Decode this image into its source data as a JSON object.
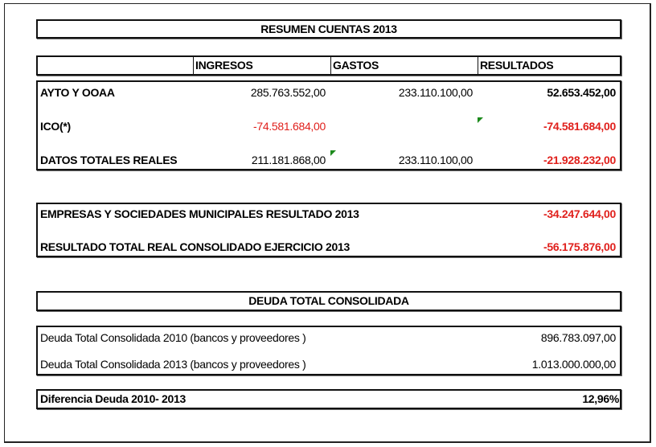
{
  "title": "RESUMEN CUENTAS 2013",
  "columns": [
    "",
    "INGRESOS",
    "GASTOS",
    "RESULTADOS"
  ],
  "rows": [
    {
      "label": "AYTO Y OOAA",
      "ingresos": "285.763.552,00",
      "gastos": "233.110.100,00",
      "resultados": "52.653.452,00"
    },
    {
      "label": "ICO(*)",
      "ingresos": "-74.581.684,00",
      "gastos": "",
      "resultados": "-74.581.684,00"
    },
    {
      "label": "DATOS TOTALES REALES",
      "ingresos": "211.181.868,00",
      "gastos": "233.110.100,00",
      "resultados": "-21.928.232,00"
    }
  ],
  "summary": [
    {
      "label": "EMPRESAS  Y SOCIEDADES MUNICIPALES RESULTADO 2013",
      "value": "-34.247.644,00"
    },
    {
      "label": "RESULTADO TOTAL REAL CONSOLIDADO EJERCICIO 2013",
      "value": "-56.175.876,00"
    }
  ],
  "debt_title": "DEUDA TOTAL CONSOLIDADA",
  "debt": [
    {
      "label": "Deuda Total Consolidada 2010 (bancos y proveedores )",
      "value": "896.783.097,00"
    },
    {
      "label": "Deuda Total Consolidada 2013 (bancos y proveedores )",
      "value": "1.013.000.000,00"
    }
  ],
  "difference": {
    "label": "Diferencia Deuda 2010- 2013",
    "value": "12,96%"
  },
  "colors": {
    "negative": "#e0201c",
    "comment_indicator": "#1c8a1c"
  }
}
